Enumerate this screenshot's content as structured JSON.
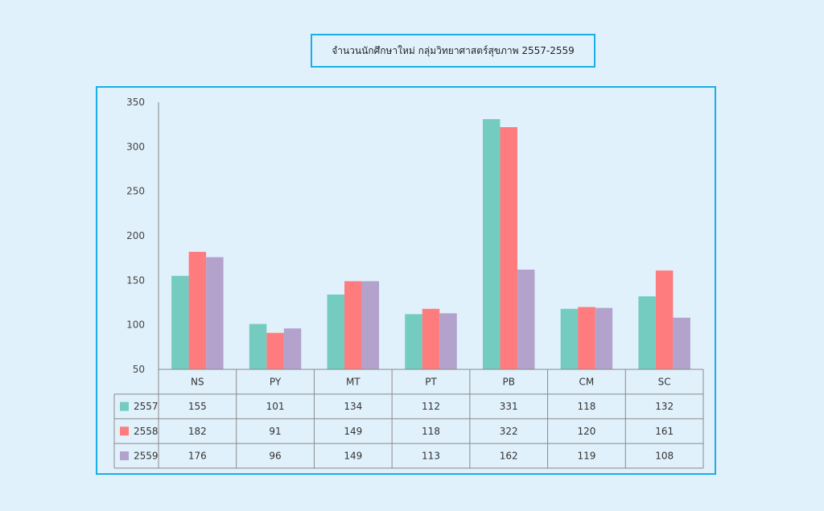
{
  "title": "จำนวนนักศึกษาใหม่ กลุ่มวิทยาศาสตร์สุขภาพ  2557-2559",
  "colors": {
    "accent_border": "#1aaee8",
    "background": "#e1f1fc"
  },
  "chart_data": {
    "type": "bar",
    "title": "จำนวนนักศึกษาใหม่ กลุ่มวิทยาศาสตร์สุขภาพ  2557-2559",
    "categories": [
      "NS",
      "PY",
      "MT",
      "PT",
      "PB",
      "CM",
      "SC"
    ],
    "series": [
      {
        "name": "2557",
        "color": "#73ccbf",
        "values": [
          155,
          101,
          134,
          112,
          331,
          118,
          132
        ]
      },
      {
        "name": "2558",
        "color": "#fe7c7d",
        "values": [
          182,
          91,
          149,
          118,
          322,
          120,
          161
        ]
      },
      {
        "name": "2559",
        "color": "#b3a2cb",
        "values": [
          176,
          96,
          149,
          113,
          162,
          119,
          108
        ]
      }
    ],
    "yticks": [
      50,
      100,
      150,
      200,
      250,
      300,
      350
    ],
    "ylim": [
      50,
      350
    ],
    "xlabel": "",
    "ylabel": "",
    "grid": false,
    "legend": "data-table"
  }
}
